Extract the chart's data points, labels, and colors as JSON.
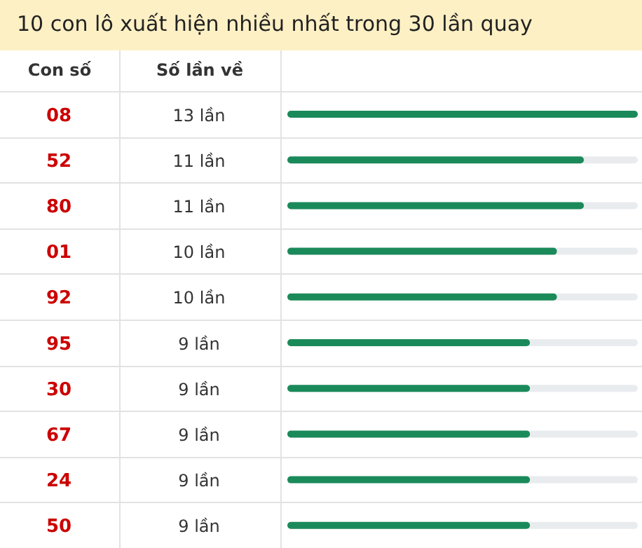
{
  "chart_data": {
    "type": "bar",
    "orientation": "horizontal",
    "title": "10 con lô xuất hiện nhiều nhất trong 30 lần quay",
    "ylabel": "Con số",
    "xlabel": "Số lần về",
    "categories": [
      "08",
      "52",
      "80",
      "01",
      "92",
      "95",
      "30",
      "67",
      "24",
      "50"
    ],
    "values": [
      13,
      11,
      11,
      10,
      10,
      9,
      9,
      9,
      9,
      9
    ],
    "value_labels": [
      "13 lần",
      "11 lần",
      "11 lần",
      "10 lần",
      "10 lần",
      "9 lần",
      "9 lần",
      "9 lần",
      "9 lần",
      "9 lần"
    ],
    "color": "#1b8a5a"
  }
}
